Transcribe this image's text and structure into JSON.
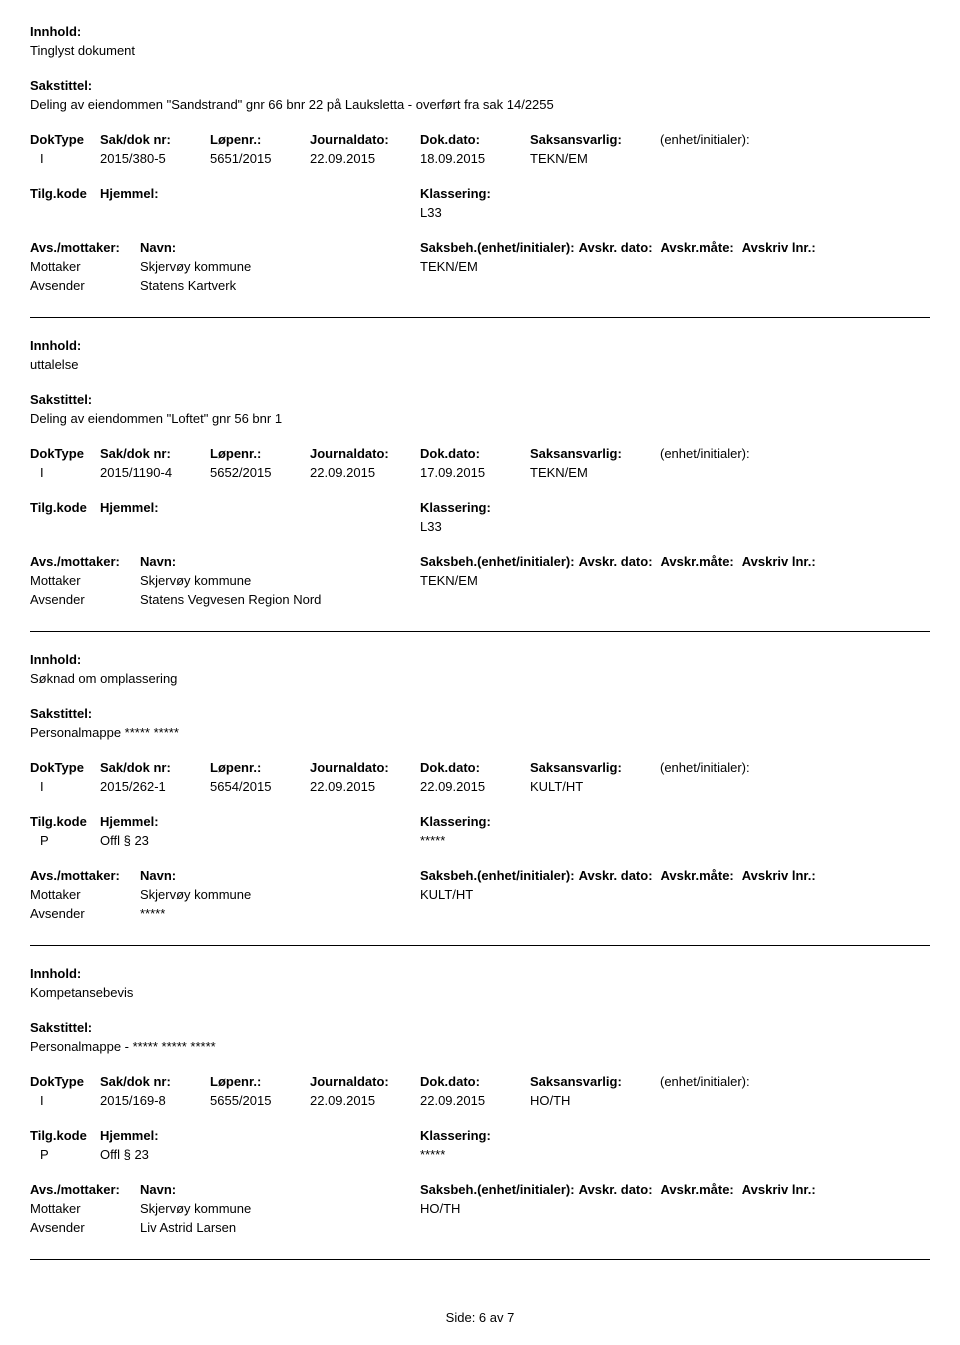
{
  "labels": {
    "innhold": "Innhold:",
    "sakstittel": "Sakstittel:",
    "doktype": "DokType",
    "sakdok": "Sak/dok nr:",
    "lopenr": "Løpenr.:",
    "journaldato": "Journaldato:",
    "dokdato": "Dok.dato:",
    "saksansvarlig": "Saksansvarlig:",
    "enhet": "(enhet/initialer):",
    "tilgkode": "Tilg.kode",
    "hjemmel": "Hjemmel:",
    "klassering": "Klassering:",
    "avsmottaker": "Avs./mottaker:",
    "navn": "Navn:",
    "saksbeh": "Saksbeh.(enhet/initialer):",
    "avskrdato": "Avskr. dato:",
    "avskrmate": "Avskr.måte:",
    "avskrivlnr": "Avskriv lnr.:",
    "mottaker": "Mottaker",
    "avsender": "Avsender"
  },
  "records": [
    {
      "innhold": "Tinglyst dokument",
      "sakstittel": "Deling av eiendommen \"Sandstrand\" gnr 66 bnr 22 på Lauksletta  -   overført fra  sak 14/2255",
      "doktype": "I",
      "sakdok": "2015/380-5",
      "lopenr": "5651/2015",
      "journaldato": "22.09.2015",
      "dokdato": "18.09.2015",
      "saksansvarlig": "TEKN/EM",
      "tilgkode": "",
      "hjemmel": "",
      "klassering": "L33",
      "mottaker_navn": "Skjervøy kommune",
      "saksbeh_val": "TEKN/EM",
      "avsender_navn": "Statens Kartverk"
    },
    {
      "innhold": "uttalelse",
      "sakstittel": "Deling av eiendommen \"Loftet\" gnr 56 bnr 1",
      "doktype": "I",
      "sakdok": "2015/1190-4",
      "lopenr": "5652/2015",
      "journaldato": "22.09.2015",
      "dokdato": "17.09.2015",
      "saksansvarlig": "TEKN/EM",
      "tilgkode": "",
      "hjemmel": "",
      "klassering": "L33",
      "mottaker_navn": "Skjervøy kommune",
      "saksbeh_val": "TEKN/EM",
      "avsender_navn": "Statens Vegvesen Region Nord"
    },
    {
      "innhold": "Søknad om omplassering",
      "sakstittel": "Personalmappe ***** *****",
      "doktype": "I",
      "sakdok": "2015/262-1",
      "lopenr": "5654/2015",
      "journaldato": "22.09.2015",
      "dokdato": "22.09.2015",
      "saksansvarlig": "KULT/HT",
      "tilgkode": "P",
      "hjemmel": "Offl § 23",
      "klassering": "*****",
      "mottaker_navn": "Skjervøy kommune",
      "saksbeh_val": "KULT/HT",
      "avsender_navn": "*****"
    },
    {
      "innhold": "Kompetansebevis",
      "sakstittel": "Personalmappe - ***** ***** *****",
      "doktype": "I",
      "sakdok": "2015/169-8",
      "lopenr": "5655/2015",
      "journaldato": "22.09.2015",
      "dokdato": "22.09.2015",
      "saksansvarlig": "HO/TH",
      "tilgkode": "P",
      "hjemmel": "Offl § 23",
      "klassering": "*****",
      "mottaker_navn": "Skjervøy kommune",
      "saksbeh_val": "HO/TH",
      "avsender_navn": "Liv Astrid Larsen"
    }
  ],
  "footer": "Side: 6 av 7",
  "layout": {
    "col_widths": {
      "doktype": 70,
      "sakdok": 110,
      "lopenr": 100,
      "journaldato": 110,
      "dokdato": 110,
      "saksansvarlig": 130,
      "enhet": 130
    },
    "col_widths2": {
      "tilgkode": 70,
      "hjemmel": 320,
      "klassering_label": 0,
      "klassering_val_left": 390
    },
    "col_widths3": {
      "avsmottaker": 110,
      "navn": 280,
      "saksbeh_block": 400
    }
  }
}
